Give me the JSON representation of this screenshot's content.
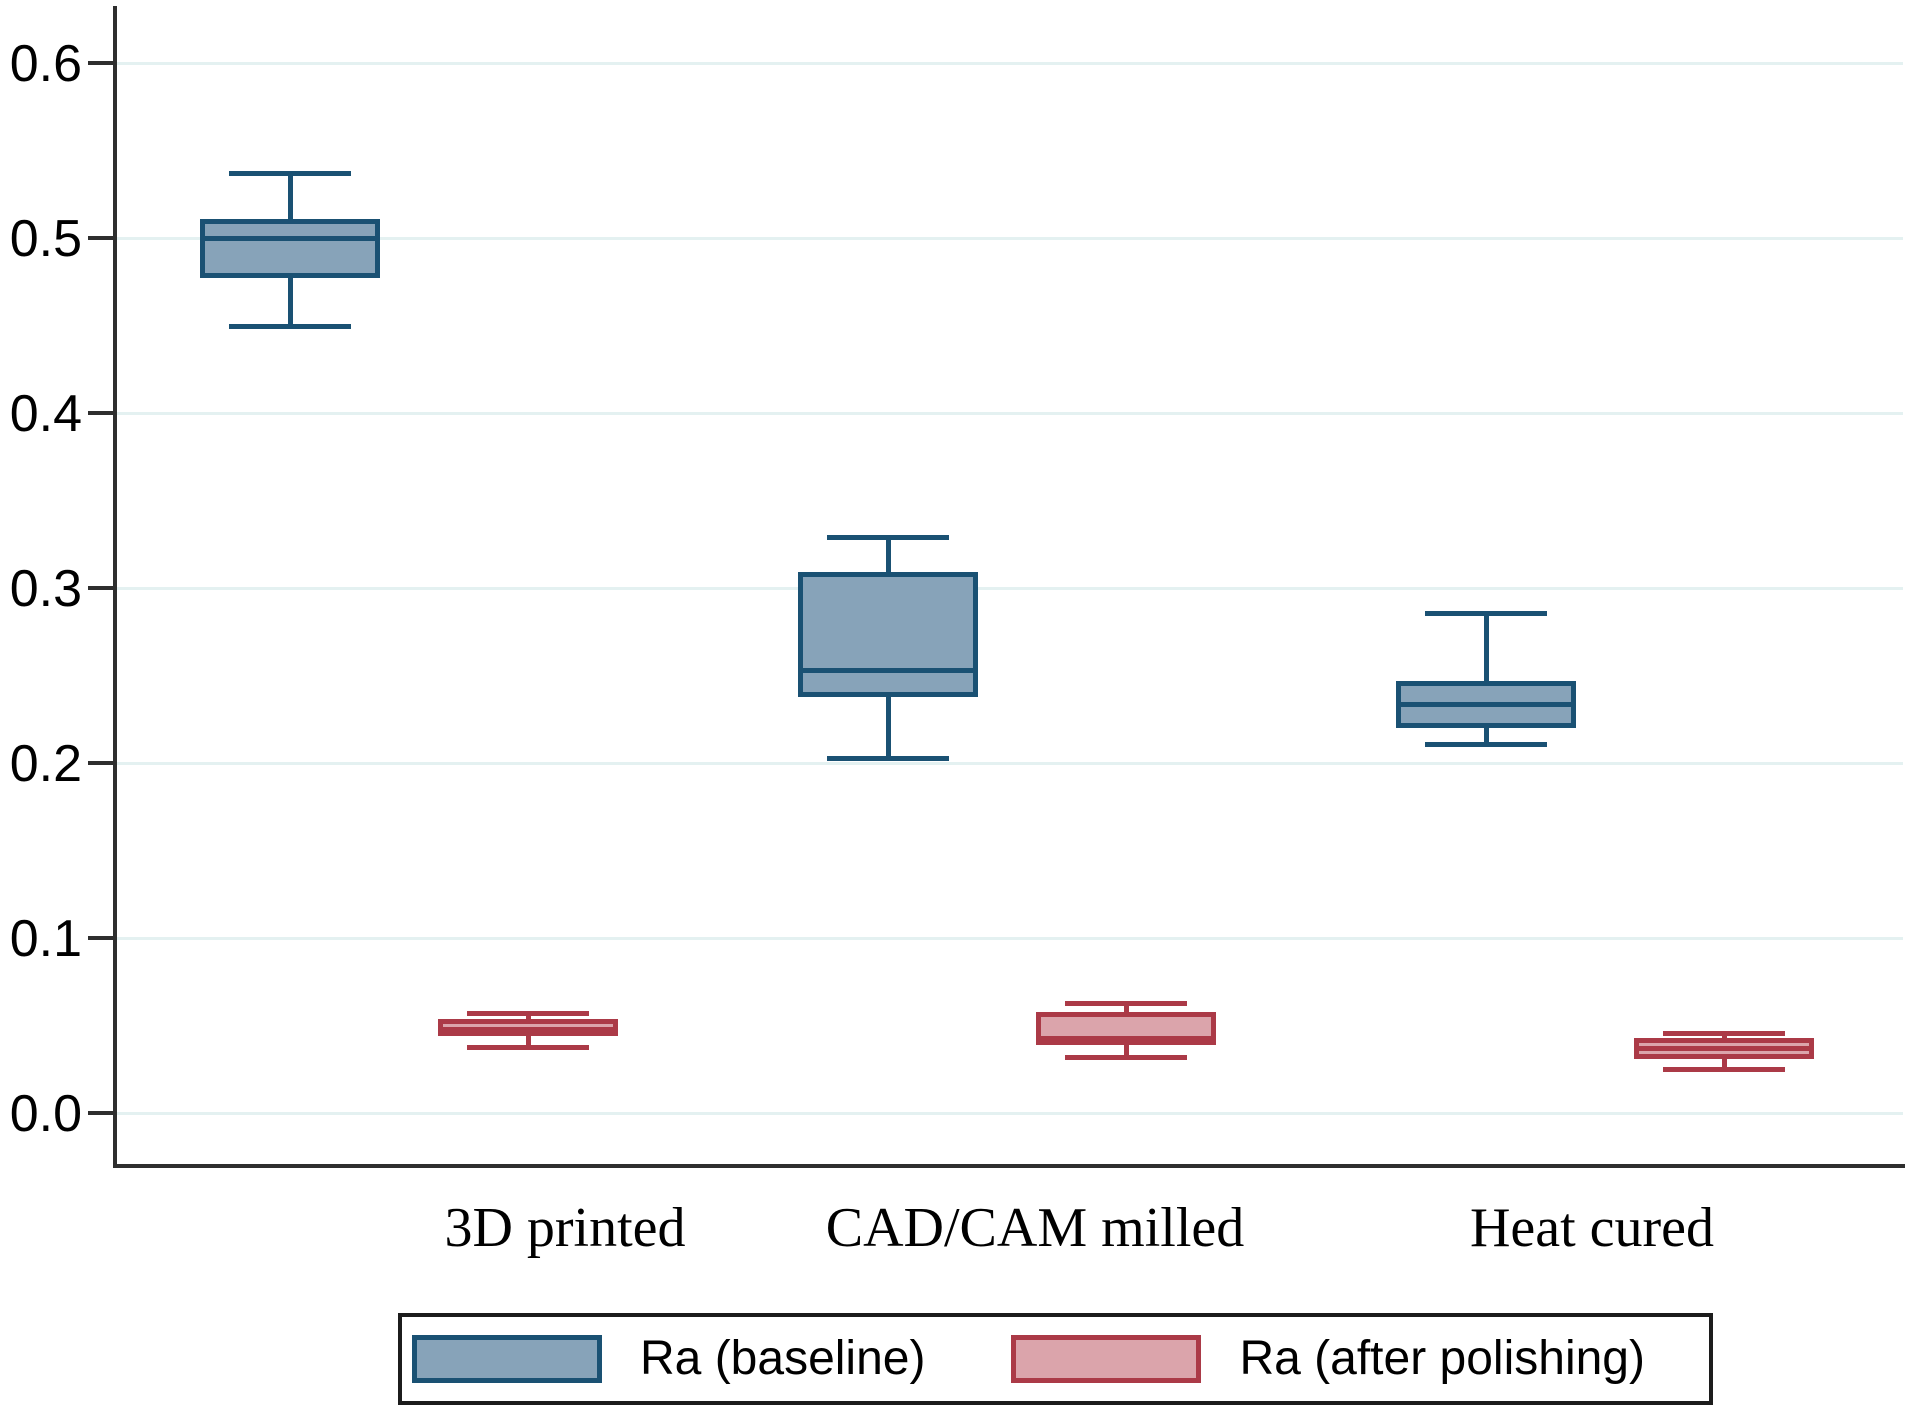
{
  "chart_data": {
    "type": "boxplot",
    "title": "",
    "xlabel": "",
    "ylabel": "",
    "categories": [
      "3D printed",
      "CAD/CAM milled",
      "Heat cured"
    ],
    "series": [
      {
        "name": "Ra (baseline)",
        "fill_color": "#87a3b9",
        "border_color": "#1a5173",
        "boxes": [
          {
            "whisker_low": 0.45,
            "q1": 0.477,
            "median": 0.5,
            "q3": 0.511,
            "whisker_high": 0.537
          },
          {
            "whisker_low": 0.203,
            "q1": 0.238,
            "median": 0.253,
            "q3": 0.309,
            "whisker_high": 0.329
          },
          {
            "whisker_low": 0.211,
            "q1": 0.22,
            "median": 0.234,
            "q3": 0.247,
            "whisker_high": 0.286
          }
        ]
      },
      {
        "name": "Ra (after polishing)",
        "fill_color": "#dba4ab",
        "border_color": "#ab3a47",
        "boxes": [
          {
            "whisker_low": 0.038,
            "q1": 0.044,
            "median": 0.048,
            "q3": 0.054,
            "whisker_high": 0.057
          },
          {
            "whisker_low": 0.032,
            "q1": 0.039,
            "median": 0.043,
            "q3": 0.058,
            "whisker_high": 0.063
          },
          {
            "whisker_low": 0.025,
            "q1": 0.031,
            "median": 0.037,
            "q3": 0.043,
            "whisker_high": 0.046
          }
        ]
      }
    ],
    "y_axis": {
      "min": 0.0,
      "max": 0.6,
      "tick_labels": [
        "0.0",
        "0.1",
        "0.2",
        "0.3",
        "0.4",
        "0.5",
        "0.6"
      ],
      "tick_values": [
        0.0,
        0.1,
        0.2,
        0.3,
        0.4,
        0.5,
        0.6
      ]
    },
    "grid": true,
    "grid_color": "#e4f1f1",
    "axis_color": "#2e2e2e",
    "legend": {
      "position": "bottom",
      "entries": [
        "Ra (baseline)",
        "Ra (after polishing)"
      ]
    }
  }
}
